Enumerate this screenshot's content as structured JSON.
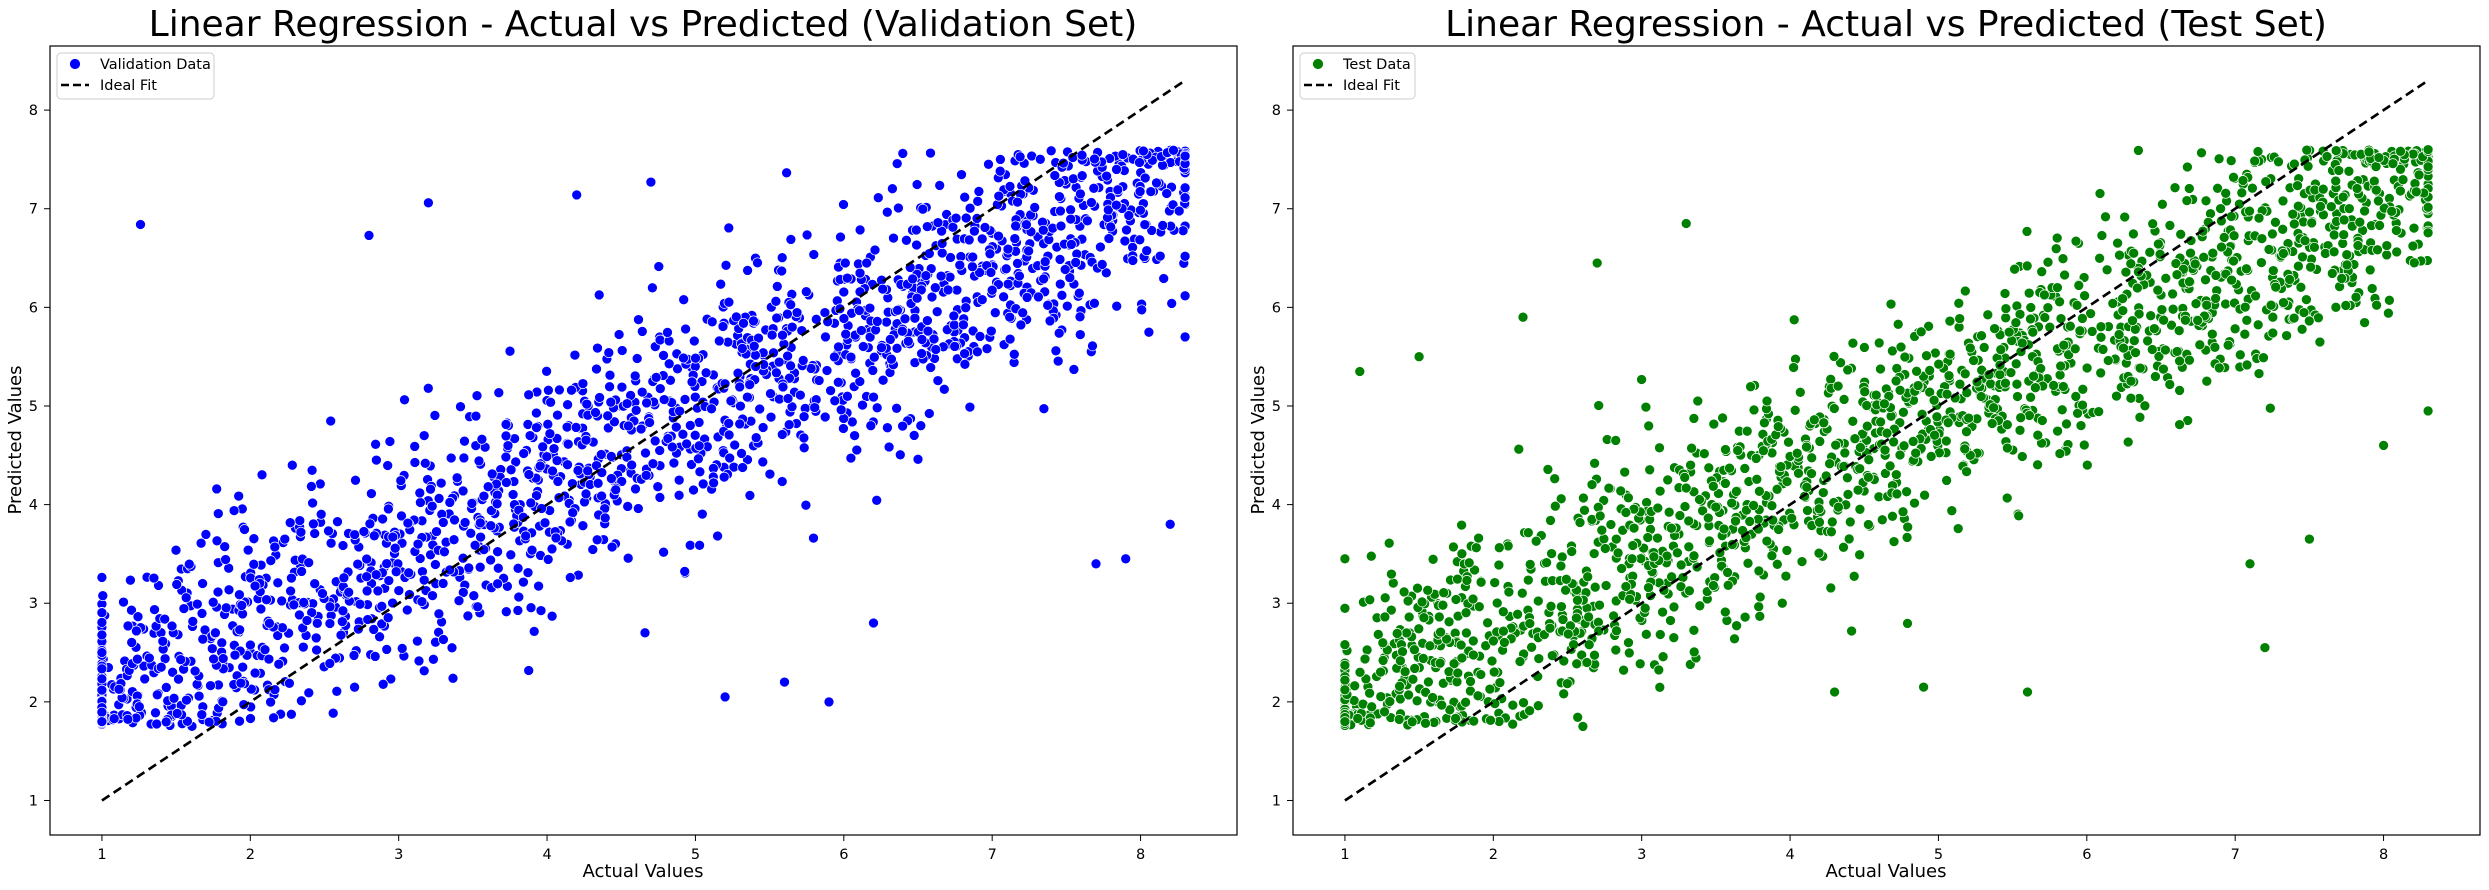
{
  "chart_data": [
    {
      "type": "scatter",
      "title": "Linear Regression - Actual vs Predicted (Validation Set)",
      "xlabel": "Actual Values",
      "ylabel": "Predicted Values",
      "xlim": [
        0.65,
        8.65
      ],
      "ylim": [
        0.65,
        8.65
      ],
      "xticks": [
        1,
        2,
        3,
        4,
        5,
        6,
        7,
        8
      ],
      "yticks": [
        1,
        2,
        3,
        4,
        5,
        6,
        7,
        8
      ],
      "grid": false,
      "legend_position": "top-left",
      "series": [
        {
          "name": "Validation Data",
          "kind": "scatter",
          "color": "#0000ff",
          "approx_count": 1800,
          "model": {
            "slope": 0.72,
            "intercept": 1.35,
            "noise_sd": 0.62,
            "y_min": 1.75,
            "y_max": 7.6,
            "x_min": 1.0,
            "x_max": 8.3
          },
          "seed": 12345,
          "points_sample": [
            [
              1.26,
              6.84
            ],
            [
              2.8,
              6.73
            ],
            [
              3.2,
              7.06
            ],
            [
              4.2,
              7.14
            ],
            [
              4.7,
              7.27
            ],
            [
              4.66,
              2.7
            ],
            [
              5.2,
              2.05
            ],
            [
              5.6,
              2.2
            ],
            [
              5.9,
              2.0
            ],
            [
              6.2,
              2.8
            ],
            [
              7.7,
              3.4
            ],
            [
              7.9,
              3.45
            ],
            [
              8.2,
              3.8
            ],
            [
              8.3,
              5.7
            ],
            [
              1.0,
              1.8
            ]
          ]
        },
        {
          "name": "Ideal Fit",
          "kind": "line",
          "color": "#000000",
          "dashed": true,
          "x": [
            1.0,
            8.3
          ],
          "y": [
            1.0,
            8.3
          ]
        }
      ]
    },
    {
      "type": "scatter",
      "title": "Linear Regression - Actual vs Predicted (Test Set)",
      "xlabel": "Actual Values",
      "ylabel": "Predicted Values",
      "xlim": [
        0.65,
        8.65
      ],
      "ylim": [
        0.65,
        8.65
      ],
      "xticks": [
        1,
        2,
        3,
        4,
        5,
        6,
        7,
        8
      ],
      "yticks": [
        1,
        2,
        3,
        4,
        5,
        6,
        7,
        8
      ],
      "grid": false,
      "legend_position": "top-left",
      "series": [
        {
          "name": "Test Data",
          "kind": "scatter",
          "color": "#008000",
          "approx_count": 1800,
          "model": {
            "slope": 0.73,
            "intercept": 1.3,
            "noise_sd": 0.58,
            "y_min": 1.75,
            "y_max": 7.6,
            "x_min": 1.0,
            "x_max": 8.3
          },
          "seed": 67890,
          "points_sample": [
            [
              1.1,
              5.35
            ],
            [
              1.5,
              5.5
            ],
            [
              3.3,
              6.85
            ],
            [
              2.7,
              6.45
            ],
            [
              2.2,
              5.9
            ],
            [
              5.6,
              2.1
            ],
            [
              4.9,
              2.15
            ],
            [
              7.2,
              2.55
            ],
            [
              7.1,
              3.4
            ],
            [
              8.3,
              4.95
            ],
            [
              7.5,
              3.65
            ],
            [
              8.0,
              4.6
            ],
            [
              1.0,
              1.8
            ],
            [
              1.0,
              3.45
            ],
            [
              4.3,
              2.1
            ]
          ]
        },
        {
          "name": "Ideal Fit",
          "kind": "line",
          "color": "#000000",
          "dashed": true,
          "x": [
            1.0,
            8.3
          ],
          "y": [
            1.0,
            8.3
          ]
        }
      ]
    }
  ]
}
